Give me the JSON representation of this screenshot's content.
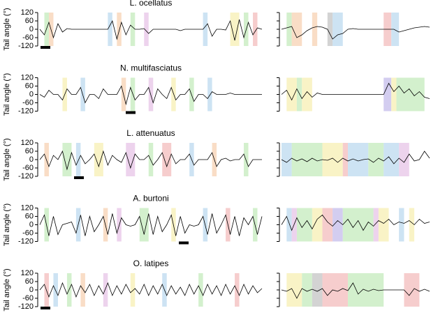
{
  "chart_data": [
    {
      "type": "line",
      "title": "L. ocellatus",
      "ylabel": "Tail angle (°)",
      "ylim": [
        -120,
        120
      ],
      "yticks": [
        -120,
        -60,
        0,
        60,
        120
      ],
      "values": [
        0,
        -40,
        50,
        -60,
        40,
        -20,
        5,
        0,
        0,
        0,
        0,
        0,
        0,
        0,
        0,
        0,
        60,
        -70,
        50,
        -40,
        30,
        0,
        0,
        5,
        -30,
        0,
        0,
        0,
        0,
        0,
        0,
        -10,
        0,
        0,
        0,
        0,
        0,
        40,
        -50,
        0,
        0,
        -5,
        60,
        -80,
        70,
        -60,
        50,
        -40,
        10,
        0
      ],
      "right_values": [
        0,
        10,
        20,
        -60,
        -40,
        -10,
        10,
        20,
        15,
        0,
        -70,
        -40,
        -30,
        0,
        5,
        0,
        0,
        0,
        0,
        0,
        0,
        0,
        0,
        -20,
        -10,
        0,
        10,
        15,
        20,
        15
      ],
      "spans": [
        [
          1,
          2,
          "#c8ecc0"
        ],
        [
          2,
          3,
          "#f8d4b8"
        ],
        [
          15,
          16,
          "#c0dcf0"
        ],
        [
          17,
          18,
          "#f8d4b8"
        ],
        [
          20,
          21,
          "#c8ecc0"
        ],
        [
          23,
          24,
          "#e8c8e8"
        ],
        [
          36,
          37,
          "#c0dcf0"
        ],
        [
          42,
          44,
          "#f8f0b8"
        ],
        [
          45,
          46,
          "#c8ecc0"
        ],
        [
          47,
          48,
          "#f4c0c0"
        ]
      ],
      "right_spans": [
        [
          1,
          2,
          "#c8ecc0"
        ],
        [
          2,
          4,
          "#f8d4b8"
        ],
        [
          6,
          7,
          "#f8d4b8"
        ],
        [
          9,
          10,
          "#c8c8c8"
        ],
        [
          10,
          12,
          "#c0dcf0"
        ],
        [
          20,
          21.5,
          "#f4c0c0"
        ],
        [
          21.5,
          23,
          "#c0dcf0"
        ]
      ]
    },
    {
      "type": "line",
      "title": "N. multifasciatus",
      "ylabel": "Tail angle (°)",
      "ylim": [
        -120,
        120
      ],
      "yticks": [
        -120,
        -60,
        0,
        60,
        120
      ],
      "values": [
        0,
        -20,
        30,
        0,
        0,
        -40,
        40,
        0,
        0,
        50,
        -60,
        0,
        0,
        -30,
        40,
        0,
        0,
        0,
        60,
        -70,
        50,
        -40,
        0,
        0,
        50,
        -60,
        40,
        0,
        -30,
        50,
        -40,
        0,
        0,
        40,
        -50,
        0,
        0,
        -30,
        20,
        0,
        0,
        0,
        10,
        0,
        0,
        0,
        0,
        0,
        0,
        0
      ],
      "right_values": [
        0,
        30,
        -40,
        40,
        -30,
        20,
        -20,
        10,
        0,
        0,
        0,
        0,
        0,
        0,
        0,
        0,
        0,
        0,
        0,
        0,
        0,
        80,
        20,
        60,
        10,
        40,
        -10,
        20,
        -20,
        -30
      ],
      "spans": [
        [
          5,
          6,
          "#f8f0b8"
        ],
        [
          9,
          10,
          "#c0dcf0"
        ],
        [
          18,
          19,
          "#f8d4b8"
        ],
        [
          20,
          21,
          "#c8ecc0"
        ],
        [
          24,
          25,
          "#e8c8e8"
        ],
        [
          29,
          30,
          "#f8f0b8"
        ],
        [
          33,
          34,
          "#c8ecc0"
        ],
        [
          37,
          38,
          "#c0dcf0"
        ]
      ],
      "right_spans": [
        [
          1,
          3,
          "#f8f0b8"
        ],
        [
          3,
          4,
          "#c8ecc0"
        ],
        [
          4,
          6,
          "#f8f0b8"
        ],
        [
          20,
          21.5,
          "#c8c0ec"
        ],
        [
          21.5,
          22.5,
          "#f8f0b8"
        ],
        [
          22.5,
          28,
          "#c8ecc0"
        ]
      ]
    },
    {
      "type": "line",
      "title": "L. attenuatus",
      "ylabel": "Tail angle (°)",
      "ylim": [
        -120,
        120
      ],
      "yticks": [
        -120,
        -60,
        0,
        60,
        120
      ],
      "values": [
        0,
        40,
        -50,
        30,
        0,
        60,
        -70,
        50,
        -40,
        30,
        -30,
        0,
        40,
        -50,
        60,
        -40,
        30,
        0,
        -20,
        50,
        -60,
        40,
        0,
        0,
        30,
        -40,
        0,
        50,
        -50,
        40,
        -30,
        0,
        0,
        40,
        -40,
        0,
        0,
        0,
        50,
        -50,
        0,
        10,
        -10,
        0,
        0,
        40,
        -50,
        0,
        0,
        0
      ],
      "right_values": [
        0,
        -20,
        10,
        -10,
        5,
        -15,
        10,
        -10,
        0,
        -5,
        10,
        -20,
        10,
        -10,
        5,
        -10,
        0,
        5,
        -20,
        10,
        -10,
        20,
        -30,
        10,
        -20,
        40,
        -10,
        0,
        60,
        10
      ],
      "spans": [
        [
          1,
          2,
          "#f8d4b8"
        ],
        [
          5,
          7,
          "#c8ecc0"
        ],
        [
          8,
          9,
          "#c0dcf0"
        ],
        [
          12,
          14,
          "#f8f0b8"
        ],
        [
          19,
          21,
          "#e8c8e8"
        ],
        [
          24,
          25,
          "#c8ecc0"
        ],
        [
          27,
          29,
          "#f4c0c0"
        ],
        [
          33,
          34,
          "#c0dcf0"
        ],
        [
          38,
          39,
          "#f8d4b8"
        ],
        [
          45,
          46,
          "#c8ecc0"
        ]
      ],
      "right_spans": [
        [
          0,
          2,
          "#c0dcf0"
        ],
        [
          2,
          8,
          "#c8ecc0"
        ],
        [
          8,
          12,
          "#f8f0b8"
        ],
        [
          12,
          13,
          "#f4c0c0"
        ],
        [
          13,
          17,
          "#c0dcf0"
        ],
        [
          17,
          20,
          "#c8ecc0"
        ],
        [
          20,
          23,
          "#c0dcf0"
        ],
        [
          23,
          25,
          "#e8c8e8"
        ]
      ]
    },
    {
      "type": "line",
      "title": "A. burtoni",
      "ylabel": "Tail angle (°)",
      "ylim": [
        -120,
        120
      ],
      "yticks": [
        -120,
        -60,
        0,
        60,
        120
      ],
      "values": [
        0,
        70,
        -80,
        60,
        -70,
        0,
        10,
        20,
        -60,
        70,
        -80,
        60,
        -50,
        0,
        60,
        -70,
        80,
        -60,
        50,
        0,
        -10,
        0,
        60,
        -70,
        80,
        -70,
        60,
        -50,
        0,
        70,
        -80,
        60,
        -60,
        0,
        -10,
        0,
        60,
        -70,
        80,
        -60,
        0,
        70,
        -70,
        60,
        -80,
        50,
        0,
        60,
        -70,
        60
      ],
      "right_values": [
        0,
        60,
        -40,
        50,
        -20,
        30,
        -30,
        40,
        70,
        20,
        -10,
        30,
        0,
        40,
        -20,
        30,
        -40,
        20,
        -10,
        30,
        10,
        40,
        0,
        20,
        10,
        30,
        0,
        40,
        10,
        20
      ],
      "spans": [
        [
          1,
          2,
          "#c8ecc0"
        ],
        [
          8,
          9,
          "#c0dcf0"
        ],
        [
          14,
          15,
          "#f8d4b8"
        ],
        [
          17,
          18,
          "#e8c8e8"
        ],
        [
          22,
          24,
          "#c8ecc0"
        ],
        [
          29,
          30,
          "#f8f0b8"
        ],
        [
          36,
          37,
          "#c0dcf0"
        ],
        [
          41,
          42,
          "#f4c0c0"
        ],
        [
          47,
          48,
          "#c8ecc0"
        ]
      ],
      "right_spans": [
        [
          1,
          2,
          "#c0dcf0"
        ],
        [
          2,
          3,
          "#e8c8e8"
        ],
        [
          3,
          6,
          "#c8ecc0"
        ],
        [
          6,
          8,
          "#f8f0b8"
        ],
        [
          8,
          10,
          "#f4c0c0"
        ],
        [
          10,
          12,
          "#c8c0ec"
        ],
        [
          12,
          18,
          "#c8ecc0"
        ],
        [
          18,
          19,
          "#e8c8e8"
        ],
        [
          19,
          21,
          "#f8f0b8"
        ],
        [
          23,
          24,
          "#c0dcf0"
        ],
        [
          25,
          26,
          "#f8f0b8"
        ]
      ]
    },
    {
      "type": "line",
      "title": "O. latipes",
      "ylabel": "Tail angle (°)",
      "ylim": [
        -120,
        120
      ],
      "yticks": [
        -120,
        -60,
        0,
        60,
        120
      ],
      "values": [
        0,
        40,
        -50,
        30,
        -40,
        50,
        -30,
        40,
        -50,
        30,
        -20,
        40,
        -40,
        30,
        -30,
        50,
        -40,
        30,
        -30,
        40,
        -20,
        10,
        -30,
        40,
        -40,
        30,
        -30,
        40,
        -40,
        30,
        -30,
        20,
        -40,
        40,
        -30,
        30,
        -40,
        40,
        -30,
        30,
        -40,
        40,
        -30,
        30,
        -40,
        40,
        -30,
        30,
        -20,
        10
      ],
      "right_values": [
        0,
        -10,
        10,
        -60,
        10,
        -10,
        5,
        -10,
        10,
        -40,
        0,
        -10,
        10,
        -5,
        50,
        -30,
        5,
        -10,
        5,
        -5,
        0,
        0,
        0,
        0,
        0,
        -40,
        10,
        -10,
        5,
        -10
      ],
      "spans": [
        [
          1,
          2,
          "#f4c0c0"
        ],
        [
          3,
          4,
          "#c0dcf0"
        ],
        [
          6,
          7,
          "#c8ecc0"
        ],
        [
          9,
          10,
          "#f8d4b8"
        ],
        [
          14,
          15,
          "#e8c8e8"
        ],
        [
          20,
          21,
          "#f8f0b8"
        ],
        [
          27,
          28,
          "#c0dcf0"
        ],
        [
          35,
          36,
          "#c8ecc0"
        ],
        [
          43,
          44,
          "#f4c0c0"
        ]
      ],
      "right_spans": [
        [
          1,
          4,
          "#f8f0b8"
        ],
        [
          4,
          6,
          "#c8ecc0"
        ],
        [
          6,
          8,
          "#c8c8c8"
        ],
        [
          8,
          13,
          "#f4c0c0"
        ],
        [
          13,
          20,
          "#c8ecc0"
        ],
        [
          24,
          27,
          "#f4c0c0"
        ]
      ]
    }
  ]
}
